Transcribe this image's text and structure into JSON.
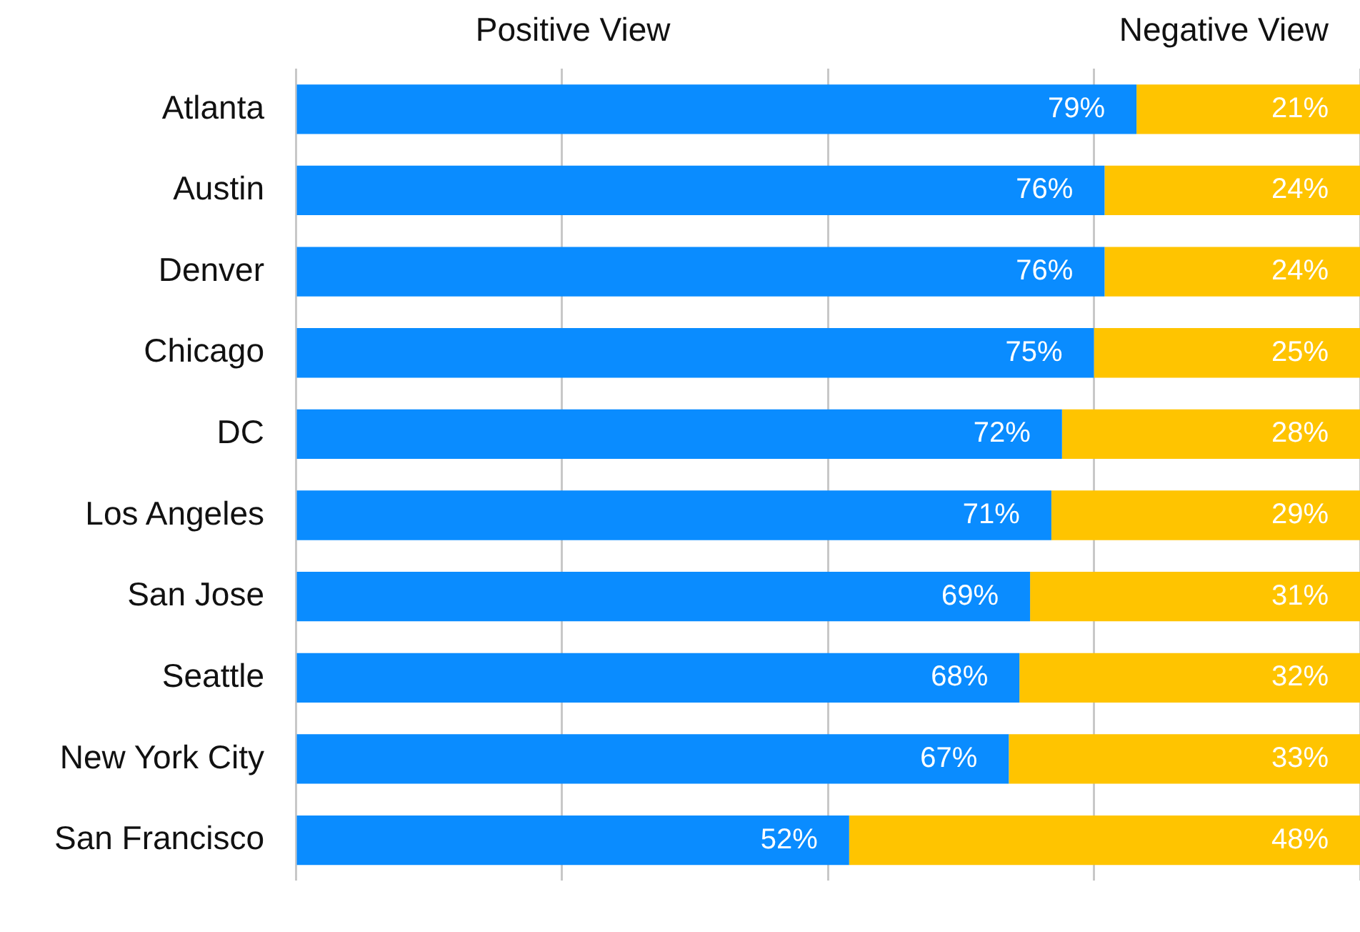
{
  "chart_data": {
    "type": "bar",
    "orientation": "horizontal",
    "stacked": true,
    "categories": [
      "Atlanta",
      "Austin",
      "Denver",
      "Chicago",
      "DC",
      "Los Angeles",
      "San Jose",
      "Seattle",
      "New York City",
      "San Francisco"
    ],
    "series": [
      {
        "name": "Positive View",
        "color": "#0a8cff",
        "values": [
          79,
          76,
          76,
          75,
          72,
          71,
          69,
          68,
          67,
          52
        ],
        "value_labels": [
          "79%",
          "76%",
          "76%",
          "75%",
          "72%",
          "71%",
          "69%",
          "68%",
          "67%",
          "52%"
        ]
      },
      {
        "name": "Negative View",
        "color": "#ffc400",
        "values": [
          21,
          24,
          24,
          25,
          28,
          29,
          31,
          32,
          33,
          48
        ],
        "value_labels": [
          "21%",
          "24%",
          "24%",
          "25%",
          "28%",
          "29%",
          "31%",
          "32%",
          "33%",
          "48%"
        ]
      }
    ],
    "xlim": [
      0,
      100
    ],
    "xticks": [
      {
        "value": 0,
        "label": null
      },
      {
        "value": 25,
        "label": null
      },
      {
        "value": 50,
        "label": null
      },
      {
        "value": 75,
        "label": null
      },
      {
        "value": 100,
        "label": null
      }
    ],
    "grid": "x",
    "tick_labels": "y",
    "legend": "top"
  }
}
